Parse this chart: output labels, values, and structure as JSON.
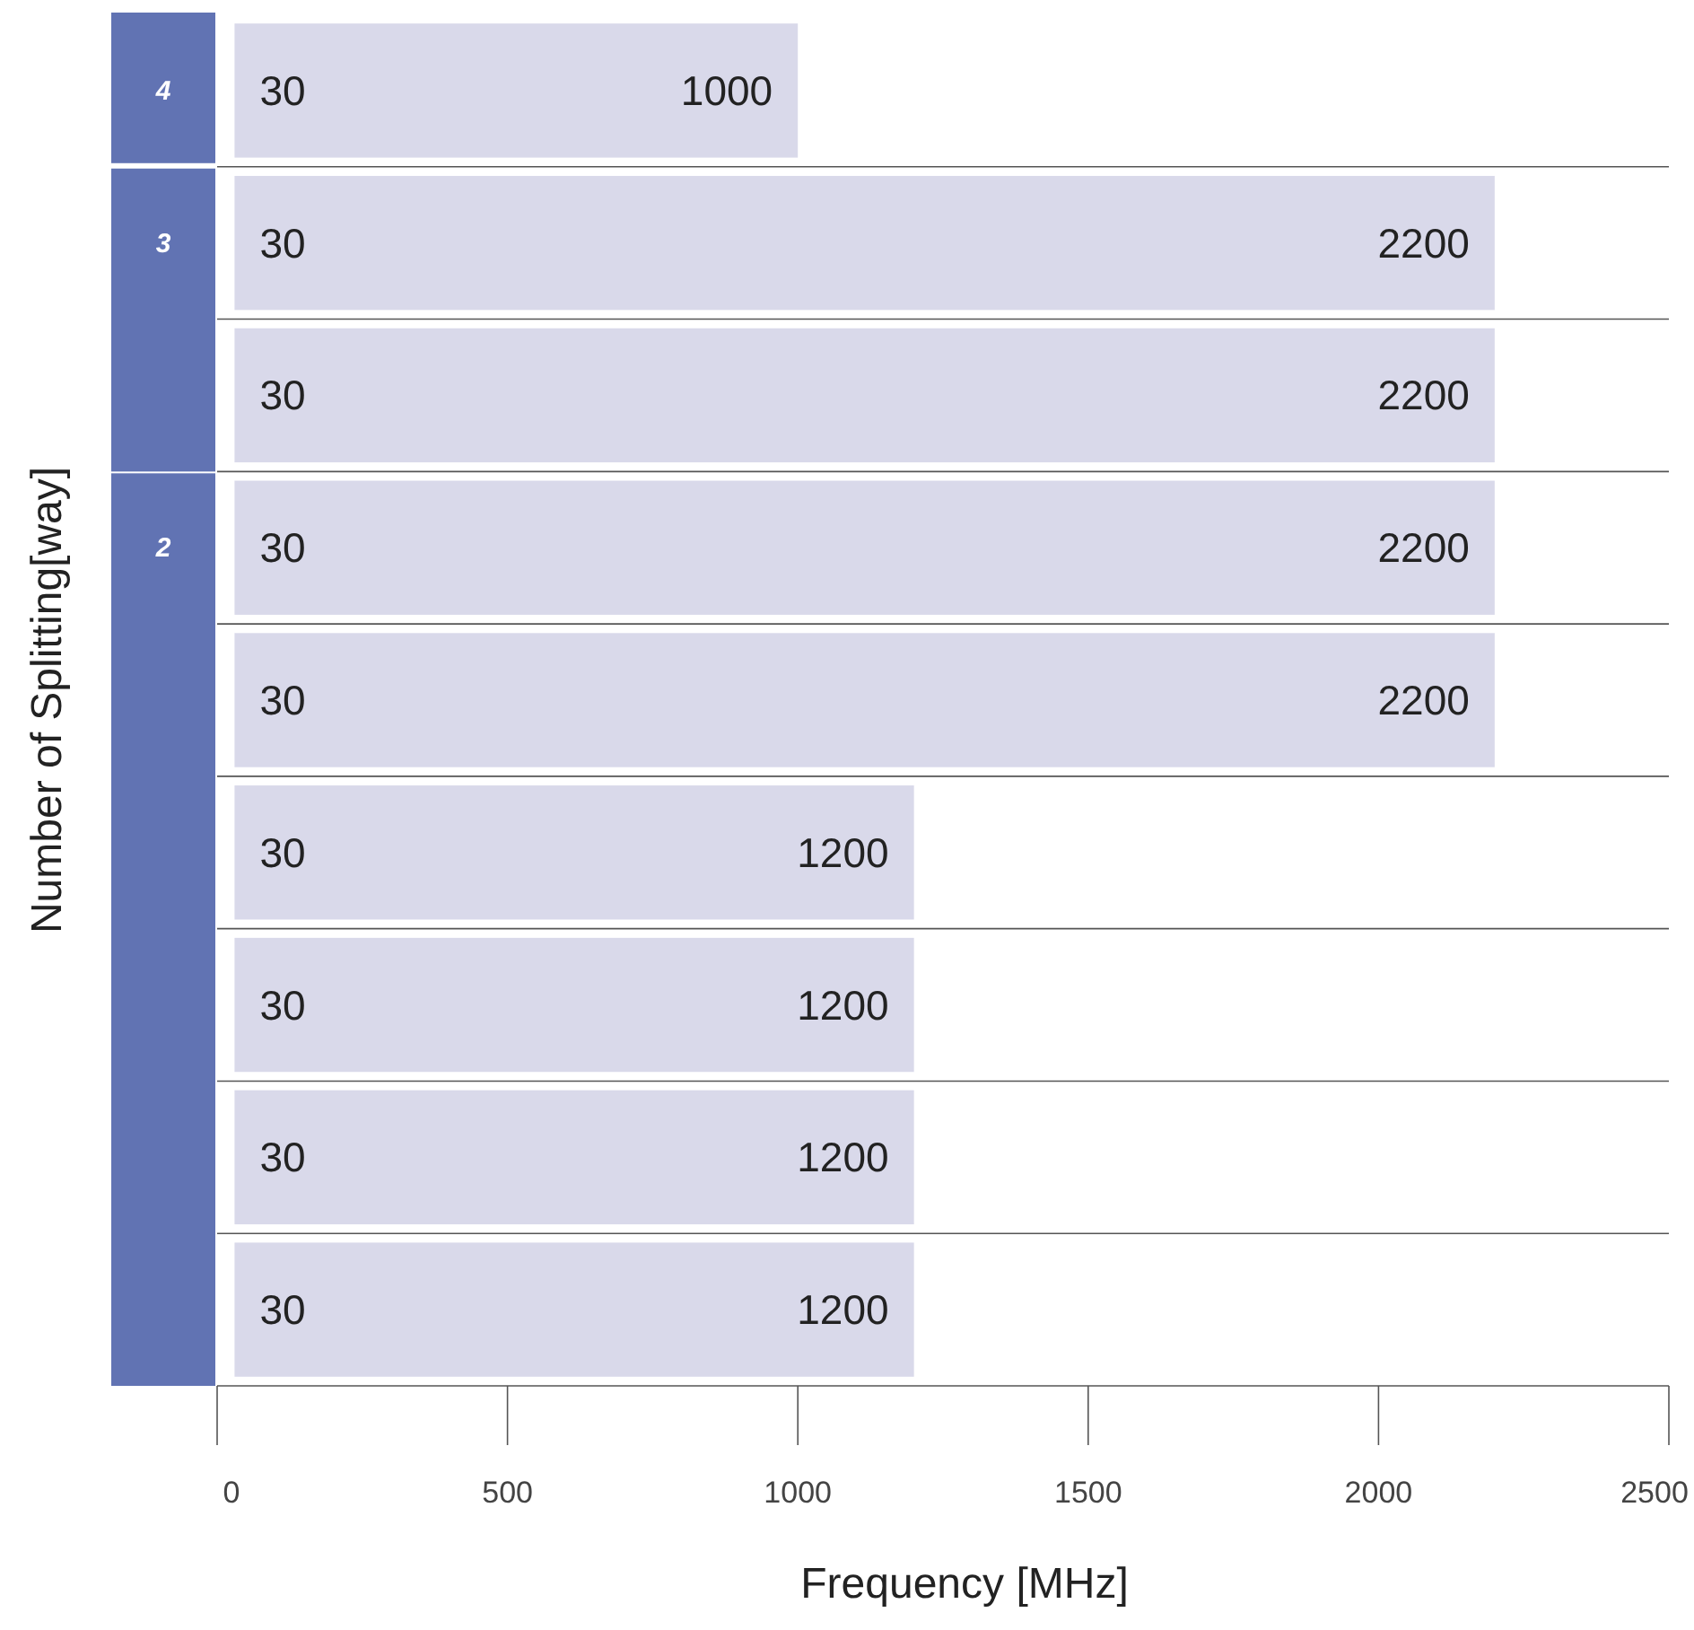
{
  "chart_data": {
    "type": "bar",
    "orientation": "horizontal",
    "xlabel": "Frequency [MHz]",
    "ylabel": "Number of Splitting[way]",
    "categories": [
      "4",
      "3",
      null,
      "2",
      null,
      null,
      null,
      null,
      null
    ],
    "base": [
      30,
      30,
      30,
      30,
      30,
      30,
      30,
      30,
      30
    ],
    "values": [
      970,
      2170,
      2170,
      2170,
      2170,
      1170,
      1170,
      1170,
      1170
    ],
    "color": "#d9d9ea",
    "xlim": [
      0,
      2500
    ],
    "xticks": [
      0,
      500,
      1000,
      1500,
      2000,
      2500
    ],
    "grid": "y",
    "annotations": [
      {
        "text": "30",
        "x": 30,
        "y": "4"
      },
      {
        "text": "1000",
        "x": 1000,
        "y": "4"
      },
      {
        "text": "30",
        "x": 30,
        "y": "3"
      },
      {
        "text": "2200",
        "x": 2200,
        "y": "3"
      },
      "30",
      "2200",
      {
        "text": "30",
        "x": 30,
        "y": "2"
      },
      {
        "text": "2200",
        "x": 2200,
        "y": "2"
      },
      "30",
      "2200",
      "30",
      "1200",
      "30",
      "1200",
      "30",
      "1200",
      "30",
      "1200"
    ]
  }
}
